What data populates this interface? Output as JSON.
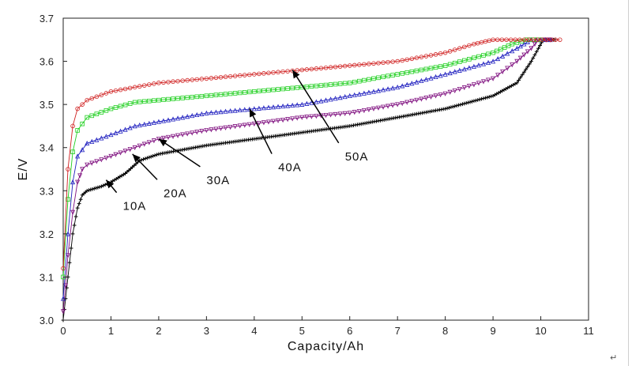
{
  "chart_data": {
    "type": "line",
    "title": "",
    "xlabel": "Capacity/Ah",
    "ylabel": "E/V",
    "xlim": [
      0,
      11
    ],
    "ylim": [
      3.0,
      3.7
    ],
    "xticks": [
      "0",
      "1",
      "2",
      "3",
      "4",
      "5",
      "6",
      "7",
      "8",
      "9",
      "10",
      "11"
    ],
    "yticks": [
      "3.0",
      "3.1",
      "3.2",
      "3.3",
      "3.4",
      "3.5",
      "3.6",
      "3.7"
    ],
    "grid": false,
    "legend": "none",
    "series": [
      {
        "color": "#000000",
        "marker": "plus",
        "points": [
          [
            0,
            3.0
          ],
          [
            0.05,
            3.05
          ],
          [
            0.1,
            3.1
          ],
          [
            0.2,
            3.2
          ],
          [
            0.3,
            3.26
          ],
          [
            0.4,
            3.29
          ],
          [
            0.5,
            3.3
          ],
          [
            0.8,
            3.31
          ],
          [
            1,
            3.32
          ],
          [
            1.3,
            3.34
          ],
          [
            1.6,
            3.37
          ],
          [
            2,
            3.385
          ],
          [
            2.5,
            3.395
          ],
          [
            3,
            3.405
          ],
          [
            4,
            3.42
          ],
          [
            5,
            3.435
          ],
          [
            6,
            3.45
          ],
          [
            7,
            3.47
          ],
          [
            8,
            3.49
          ],
          [
            9,
            3.52
          ],
          [
            9.5,
            3.55
          ],
          [
            9.8,
            3.6
          ],
          [
            9.95,
            3.63
          ],
          [
            10.05,
            3.65
          ],
          [
            10.3,
            3.65
          ]
        ]
      },
      {
        "color": "#7f0f7f",
        "marker": "triangle-down",
        "points": [
          [
            0,
            3.02
          ],
          [
            0.05,
            3.08
          ],
          [
            0.1,
            3.15
          ],
          [
            0.2,
            3.25
          ],
          [
            0.3,
            3.32
          ],
          [
            0.4,
            3.35
          ],
          [
            0.5,
            3.36
          ],
          [
            1,
            3.38
          ],
          [
            1.5,
            3.4
          ],
          [
            2,
            3.42
          ],
          [
            3,
            3.44
          ],
          [
            4,
            3.455
          ],
          [
            5,
            3.47
          ],
          [
            6,
            3.48
          ],
          [
            7,
            3.5
          ],
          [
            8,
            3.525
          ],
          [
            9,
            3.56
          ],
          [
            9.5,
            3.6
          ],
          [
            9.8,
            3.63
          ],
          [
            9.95,
            3.65
          ],
          [
            10.2,
            3.65
          ]
        ]
      },
      {
        "color": "#1f1fbf",
        "marker": "triangle-up",
        "points": [
          [
            0,
            3.05
          ],
          [
            0.1,
            3.2
          ],
          [
            0.2,
            3.32
          ],
          [
            0.3,
            3.38
          ],
          [
            0.5,
            3.41
          ],
          [
            1,
            3.43
          ],
          [
            1.5,
            3.45
          ],
          [
            2,
            3.46
          ],
          [
            3,
            3.48
          ],
          [
            4,
            3.49
          ],
          [
            5,
            3.5
          ],
          [
            6,
            3.52
          ],
          [
            7,
            3.54
          ],
          [
            8,
            3.57
          ],
          [
            9,
            3.6
          ],
          [
            9.5,
            3.63
          ],
          [
            9.8,
            3.65
          ],
          [
            10.2,
            3.65
          ]
        ]
      },
      {
        "color": "#1fcf1f",
        "marker": "square",
        "points": [
          [
            0,
            3.1
          ],
          [
            0.1,
            3.28
          ],
          [
            0.2,
            3.39
          ],
          [
            0.3,
            3.44
          ],
          [
            0.5,
            3.47
          ],
          [
            1,
            3.49
          ],
          [
            1.5,
            3.505
          ],
          [
            2,
            3.51
          ],
          [
            3,
            3.52
          ],
          [
            4,
            3.53
          ],
          [
            5,
            3.54
          ],
          [
            6,
            3.55
          ],
          [
            7,
            3.57
          ],
          [
            8,
            3.59
          ],
          [
            9,
            3.62
          ],
          [
            9.4,
            3.64
          ],
          [
            9.7,
            3.65
          ],
          [
            10,
            3.65
          ]
        ]
      },
      {
        "color": "#cf1f1f",
        "marker": "circle",
        "points": [
          [
            0,
            3.12
          ],
          [
            0.1,
            3.35
          ],
          [
            0.2,
            3.45
          ],
          [
            0.3,
            3.49
          ],
          [
            0.5,
            3.51
          ],
          [
            1,
            3.53
          ],
          [
            1.5,
            3.54
          ],
          [
            2,
            3.55
          ],
          [
            3,
            3.56
          ],
          [
            4,
            3.57
          ],
          [
            5,
            3.58
          ],
          [
            6,
            3.59
          ],
          [
            7,
            3.6
          ],
          [
            8,
            3.62
          ],
          [
            8.6,
            3.64
          ],
          [
            9,
            3.65
          ],
          [
            10.4,
            3.65
          ]
        ]
      }
    ],
    "annotations": [
      {
        "text": "10A",
        "x": 1.35,
        "y": 3.27,
        "arrow_to": [
          0.9,
          3.325
        ]
      },
      {
        "text": "20A",
        "x": 2.2,
        "y": 3.3,
        "arrow_to": [
          1.45,
          3.385
        ]
      },
      {
        "text": "30A",
        "x": 3.1,
        "y": 3.33,
        "arrow_to": [
          2.0,
          3.42
        ]
      },
      {
        "text": "40A",
        "x": 4.6,
        "y": 3.36,
        "arrow_to": [
          3.9,
          3.49
        ]
      },
      {
        "text": "50A",
        "x": 6.0,
        "y": 3.385,
        "arrow_to": [
          4.8,
          3.58
        ]
      }
    ]
  },
  "page": {
    "return_mark": "↵"
  }
}
